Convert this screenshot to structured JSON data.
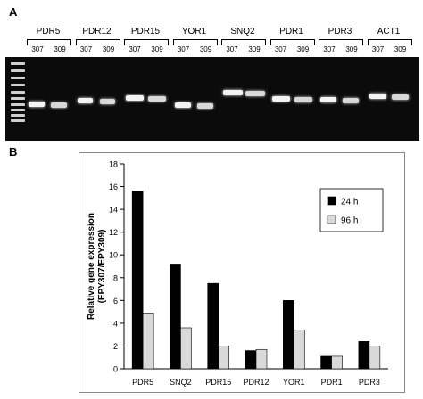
{
  "panel_a": {
    "letter": "A",
    "genes": [
      {
        "name": "PDR5",
        "lanes": [
          "307",
          "309"
        ]
      },
      {
        "name": "PDR12",
        "lanes": [
          "307",
          "309"
        ]
      },
      {
        "name": "PDR15",
        "lanes": [
          "307",
          "309"
        ]
      },
      {
        "name": "YOR1",
        "lanes": [
          "307",
          "309"
        ]
      },
      {
        "name": "SNQ2",
        "lanes": [
          "307",
          "309"
        ]
      },
      {
        "name": "PDR1",
        "lanes": [
          "307",
          "309"
        ]
      },
      {
        "name": "PDR3",
        "lanes": [
          "307",
          "309"
        ]
      },
      {
        "name": "ACT1",
        "lanes": [
          "307",
          "309"
        ]
      }
    ]
  },
  "panel_b": {
    "letter": "B"
  },
  "chart_data": {
    "type": "bar",
    "categories": [
      "PDR5",
      "SNQ2",
      "PDR15",
      "PDR12",
      "YOR1",
      "PDR1",
      "PDR3"
    ],
    "series": [
      {
        "name": "24 h",
        "values": [
          15.6,
          9.2,
          7.5,
          1.6,
          6.0,
          1.1,
          2.4
        ],
        "color": "#000000"
      },
      {
        "name": "96 h",
        "values": [
          4.9,
          3.6,
          2.0,
          1.7,
          3.4,
          1.1,
          2.0
        ],
        "color": "#d9d9d9"
      }
    ],
    "ylabel_line1": "Relative gene expression",
    "ylabel_line2": "(EPY307/EPY309)",
    "ylim": [
      0,
      18
    ],
    "yticks": [
      0,
      2,
      4,
      6,
      8,
      10,
      12,
      14,
      16,
      18
    ],
    "grid": false,
    "legend_position": "top-right"
  }
}
